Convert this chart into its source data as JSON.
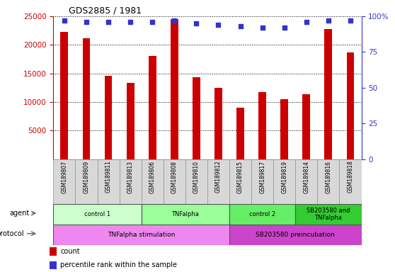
{
  "title": "GDS2885 / 1981",
  "samples": [
    "GSM189807",
    "GSM189809",
    "GSM189811",
    "GSM189813",
    "GSM189806",
    "GSM189808",
    "GSM189810",
    "GSM189812",
    "GSM189815",
    "GSM189817",
    "GSM189819",
    "GSM189814",
    "GSM189816",
    "GSM189818"
  ],
  "counts": [
    22300,
    21100,
    14600,
    13400,
    18000,
    24500,
    14400,
    12500,
    9000,
    11700,
    10500,
    11400,
    22800,
    18700
  ],
  "percentile_ranks": [
    97,
    96,
    96,
    96,
    96,
    97,
    95,
    94,
    93,
    92,
    92,
    96,
    97,
    97
  ],
  "bar_color": "#cc0000",
  "dot_color": "#3333cc",
  "ylim_left": [
    0,
    25000
  ],
  "ylim_right": [
    0,
    100
  ],
  "yticks_left": [
    5000,
    10000,
    15000,
    20000,
    25000
  ],
  "yticks_right": [
    0,
    25,
    50,
    75,
    100
  ],
  "agent_groups": [
    {
      "label": "control 1",
      "start": 0,
      "end": 4,
      "color": "#ccffcc"
    },
    {
      "label": "TNFalpha",
      "start": 4,
      "end": 8,
      "color": "#99ff99"
    },
    {
      "label": "control 2",
      "start": 8,
      "end": 11,
      "color": "#66ee66"
    },
    {
      "label": "SB203580 and\nTNFalpha",
      "start": 11,
      "end": 14,
      "color": "#33cc33"
    }
  ],
  "protocol_groups": [
    {
      "label": "TNFalpha stimulation",
      "start": 0,
      "end": 8,
      "color": "#ee88ee"
    },
    {
      "label": "SB203580 preincubation",
      "start": 8,
      "end": 14,
      "color": "#cc44cc"
    }
  ],
  "bg_color": "#ffffff",
  "tick_bg_color": "#dddddd"
}
